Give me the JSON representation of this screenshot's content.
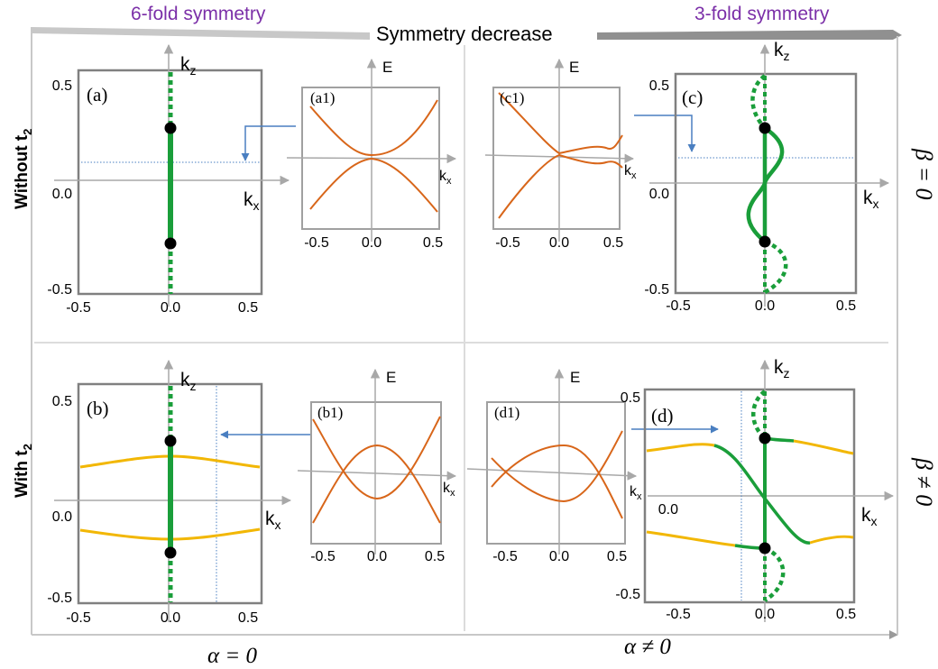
{
  "header": {
    "left_title": "6-fold symmetry",
    "right_title": "3-fold symmetry",
    "arrow_label": "Symmetry decrease",
    "title_color": "#7b2fa8"
  },
  "row_labels": {
    "top_main": "Without t",
    "bottom_main": "With t",
    "subscript": "2"
  },
  "col_labels": {
    "left": "α = 0",
    "right": "α ≠ 0"
  },
  "side_labels": {
    "top": "β = 0",
    "bottom": "β ≠ 0"
  },
  "panels": {
    "a": "(a)",
    "b": "(b)",
    "c": "(c)",
    "d": "(d)",
    "a1": "(a1)",
    "b1": "(b1)",
    "c1": "(c1)",
    "d1": "(d1)"
  },
  "axis_labels": {
    "kz": "k",
    "kz_sub": "z",
    "kx": "k",
    "kx_sub": "x",
    "E": "E"
  },
  "ticks": {
    "y_top": "0.5",
    "y_mid": "0.0",
    "y_bot": "-0.5",
    "x_left": "-0.5",
    "x_mid": "0.0",
    "x_right": "0.5"
  },
  "colors": {
    "nodal_line": "#1a9e3a",
    "surface_line": "#f2b705",
    "band": "#d8661a",
    "pointer": "#4a7fc1",
    "frame": "#808080",
    "axis": "#a8a8a8"
  }
}
